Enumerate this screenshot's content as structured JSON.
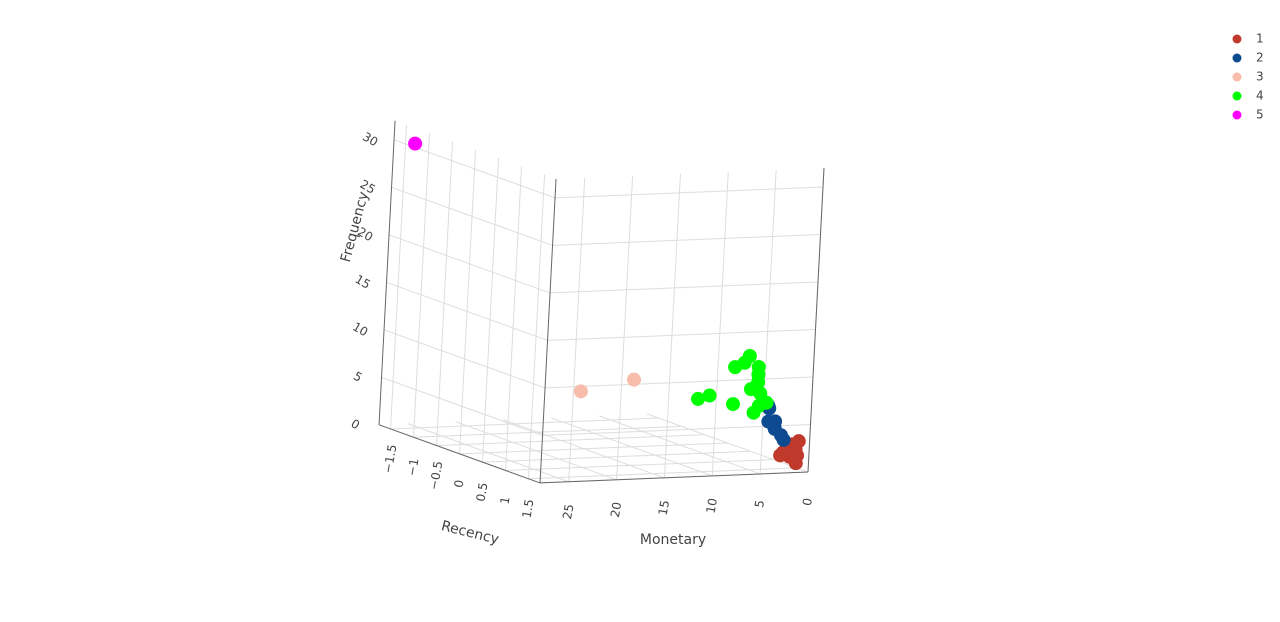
{
  "chart_data": {
    "type": "scatter3d",
    "x_label": "Recency",
    "y_label": "Monetary",
    "z_label": "Frequency",
    "xlim": [
      -1.75,
      1.75
    ],
    "ylim": [
      0,
      28
    ],
    "zlim": [
      0,
      32
    ],
    "xticks": [
      {
        "value": -1.5,
        "label": "−1.5"
      },
      {
        "value": -1,
        "label": "−1"
      },
      {
        "value": -0.5,
        "label": "−0.5"
      },
      0,
      0.5,
      1,
      1.5
    ],
    "yticks": [
      0,
      5,
      10,
      15,
      20,
      25
    ],
    "zticks": [
      0,
      5,
      10,
      15,
      20,
      25,
      30
    ],
    "grid": true,
    "legend": "top-right",
    "series": [
      {
        "name": "1",
        "color": "#c0392b",
        "x": [
          1.5,
          1.4,
          1.6,
          1.5,
          1.3,
          1.5,
          1.6,
          1.4
        ],
        "y": [
          0.1,
          0.3,
          0.5,
          0.2,
          0.8,
          0.6,
          0.4,
          1.0
        ],
        "z": [
          0.5,
          1,
          1.5,
          2,
          1,
          2.5,
          3,
          1.5
        ]
      },
      {
        "name": "2",
        "color": "#0d4a8f",
        "x": [
          1.5,
          1.4,
          1.5,
          1.6,
          1.3,
          1.5,
          1.4,
          1.5
        ],
        "y": [
          1.5,
          2,
          2.5,
          3,
          2.2,
          1.8,
          2.8,
          3.2
        ],
        "z": [
          3,
          4,
          5,
          4.5,
          6,
          3.5,
          6.5,
          5
        ]
      },
      {
        "name": "3",
        "color": "#f7bcaa",
        "x": [
          1.5,
          1.5
        ],
        "y": [
          23,
          17.5
        ],
        "z": [
          9,
          10
        ]
      },
      {
        "name": "4",
        "color": "#00ff00",
        "x": [
          1.5,
          1.4,
          1.5,
          1.6,
          1.5,
          1.3,
          1.5,
          1.4,
          1.5,
          1.6,
          1.5,
          1.5,
          1.4,
          1.5
        ],
        "y": [
          3.5,
          4,
          4.5,
          5,
          5.5,
          6,
          4.2,
          3.8,
          5.2,
          6.5,
          4.8,
          9.5,
          10.2,
          7
        ],
        "z": [
          7,
          9,
          10,
          11,
          12,
          10.5,
          8,
          6.5,
          8.5,
          11.5,
          6,
          8,
          7.5,
          7
        ]
      },
      {
        "name": "5",
        "color": "#ff00ff",
        "x": [
          -1.5
        ],
        "y": [
          27
        ],
        "z": [
          30
        ]
      }
    ]
  }
}
